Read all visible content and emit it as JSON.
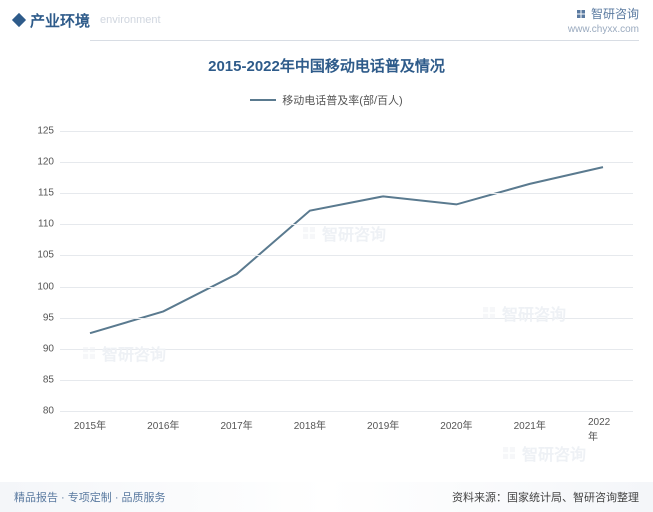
{
  "header": {
    "title": "产业环境",
    "subtitle": "environment",
    "brand_text": "智研咨询",
    "brand_url": "www.chyxx.com"
  },
  "chart": {
    "type": "line",
    "title": "2015-2022年中国移动电话普及情况",
    "legend_label": "移动电话普及率(部/百人)",
    "categories": [
      "2015年",
      "2016年",
      "2017年",
      "2018年",
      "2019年",
      "2020年",
      "2021年",
      "2022年"
    ],
    "values": [
      92.5,
      96,
      102,
      112.2,
      114.5,
      113.2,
      116.5,
      119.2
    ],
    "line_color": "#5a7a8f",
    "line_width": 2,
    "ylim": [
      80,
      125
    ],
    "ytick_step": 5,
    "grid_color": "#e6e9ed",
    "background_color": "#ffffff",
    "title_color": "#2e5b8a",
    "title_fontsize": 15,
    "axis_label_fontsize": 10,
    "axis_label_color": "#555555"
  },
  "footer": {
    "left": "精品报告 · 专项定制 · 品质服务",
    "right": "资料来源：国家统计局、智研咨询整理"
  },
  "watermark": {
    "text": "智研咨询"
  }
}
